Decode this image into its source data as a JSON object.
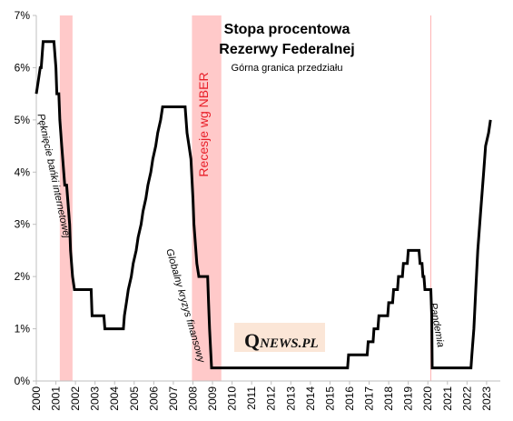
{
  "chart_data": {
    "type": "line",
    "title_line1": "Stopa procentowa",
    "title_line2": "Rezerwy Federalnej",
    "subtitle": "Górna granica przedziału",
    "xlim": [
      2000.0,
      2023.7
    ],
    "ylim": [
      0,
      7
    ],
    "x_tick_labels": [
      "2000",
      "2001",
      "2002",
      "2003",
      "2004",
      "2005",
      "2006",
      "2007",
      "2008",
      "2009",
      "2010",
      "2011",
      "2012",
      "2013",
      "2014",
      "2015",
      "2016",
      "2017",
      "2018",
      "2019",
      "2020",
      "2021",
      "2022",
      "2023"
    ],
    "y_tick_values": [
      0,
      1,
      2,
      3,
      4,
      5,
      6,
      7
    ],
    "y_tick_labels": [
      "0%",
      "1%",
      "2%",
      "3%",
      "4%",
      "5%",
      "6%",
      "7%"
    ],
    "series": [
      {
        "color": "#000000",
        "points": [
          [
            2000.0,
            5.5
          ],
          [
            2000.1,
            5.75
          ],
          [
            2000.2,
            6.0
          ],
          [
            2000.25,
            6.0
          ],
          [
            2000.35,
            6.5
          ],
          [
            2000.9,
            6.5
          ],
          [
            2001.0,
            6.0
          ],
          [
            2001.05,
            5.5
          ],
          [
            2001.15,
            5.5
          ],
          [
            2001.2,
            5.0
          ],
          [
            2001.3,
            4.5
          ],
          [
            2001.4,
            4.0
          ],
          [
            2001.45,
            3.75
          ],
          [
            2001.55,
            3.75
          ],
          [
            2001.6,
            3.5
          ],
          [
            2001.7,
            3.0
          ],
          [
            2001.75,
            2.5
          ],
          [
            2001.8,
            2.25
          ],
          [
            2001.85,
            2.0
          ],
          [
            2001.95,
            1.75
          ],
          [
            2002.8,
            1.75
          ],
          [
            2002.85,
            1.25
          ],
          [
            2003.45,
            1.25
          ],
          [
            2003.5,
            1.0
          ],
          [
            2004.45,
            1.0
          ],
          [
            2004.5,
            1.25
          ],
          [
            2004.6,
            1.5
          ],
          [
            2004.7,
            1.75
          ],
          [
            2004.85,
            2.0
          ],
          [
            2004.95,
            2.25
          ],
          [
            2005.1,
            2.5
          ],
          [
            2005.2,
            2.75
          ],
          [
            2005.35,
            3.0
          ],
          [
            2005.45,
            3.25
          ],
          [
            2005.6,
            3.5
          ],
          [
            2005.7,
            3.75
          ],
          [
            2005.85,
            4.0
          ],
          [
            2005.95,
            4.25
          ],
          [
            2006.1,
            4.5
          ],
          [
            2006.2,
            4.75
          ],
          [
            2006.35,
            5.0
          ],
          [
            2006.45,
            5.25
          ],
          [
            2007.6,
            5.25
          ],
          [
            2007.7,
            4.75
          ],
          [
            2007.8,
            4.5
          ],
          [
            2007.9,
            4.25
          ],
          [
            2008.0,
            3.5
          ],
          [
            2008.05,
            3.0
          ],
          [
            2008.2,
            2.25
          ],
          [
            2008.3,
            2.0
          ],
          [
            2008.75,
            2.0
          ],
          [
            2008.8,
            1.5
          ],
          [
            2008.85,
            1.0
          ],
          [
            2008.95,
            0.25
          ],
          [
            2015.9,
            0.25
          ],
          [
            2015.95,
            0.5
          ],
          [
            2016.9,
            0.5
          ],
          [
            2016.95,
            0.75
          ],
          [
            2017.2,
            0.75
          ],
          [
            2017.25,
            1.0
          ],
          [
            2017.45,
            1.0
          ],
          [
            2017.5,
            1.25
          ],
          [
            2017.95,
            1.25
          ],
          [
            2018.0,
            1.5
          ],
          [
            2018.2,
            1.5
          ],
          [
            2018.25,
            1.75
          ],
          [
            2018.45,
            1.75
          ],
          [
            2018.5,
            2.0
          ],
          [
            2018.7,
            2.0
          ],
          [
            2018.75,
            2.25
          ],
          [
            2018.95,
            2.25
          ],
          [
            2019.0,
            2.5
          ],
          [
            2019.55,
            2.5
          ],
          [
            2019.6,
            2.25
          ],
          [
            2019.7,
            2.25
          ],
          [
            2019.75,
            2.0
          ],
          [
            2019.8,
            2.0
          ],
          [
            2019.85,
            1.75
          ],
          [
            2020.15,
            1.75
          ],
          [
            2020.2,
            1.25
          ],
          [
            2020.22,
            0.25
          ],
          [
            2022.2,
            0.25
          ],
          [
            2022.25,
            0.5
          ],
          [
            2022.35,
            1.0
          ],
          [
            2022.45,
            1.75
          ],
          [
            2022.55,
            2.5
          ],
          [
            2022.7,
            3.25
          ],
          [
            2022.85,
            4.0
          ],
          [
            2022.95,
            4.5
          ],
          [
            2023.1,
            4.75
          ],
          [
            2023.2,
            5.0
          ]
        ]
      }
    ],
    "recessions": [
      {
        "start": 2001.2,
        "end": 2001.85
      },
      {
        "start": 2007.95,
        "end": 2009.45
      }
    ],
    "pandemic_line_x": 2020.15,
    "shade_color": "#ffc9c9",
    "annotations": {
      "dotcom": "Pęknięcie bańki internetowej",
      "gfc": "Globalny kryzys finansowy",
      "pandemic": "Pandemia",
      "recessions": "Recesje wg NBER"
    },
    "grid": false
  },
  "logo": {
    "initial": "Q",
    "rest": "NEWS.PL",
    "background": "#fbe6d7"
  },
  "colors": {
    "recession_label": "#e8202a",
    "line": "#000000",
    "pandemic_line": "#ffb3b3"
  }
}
